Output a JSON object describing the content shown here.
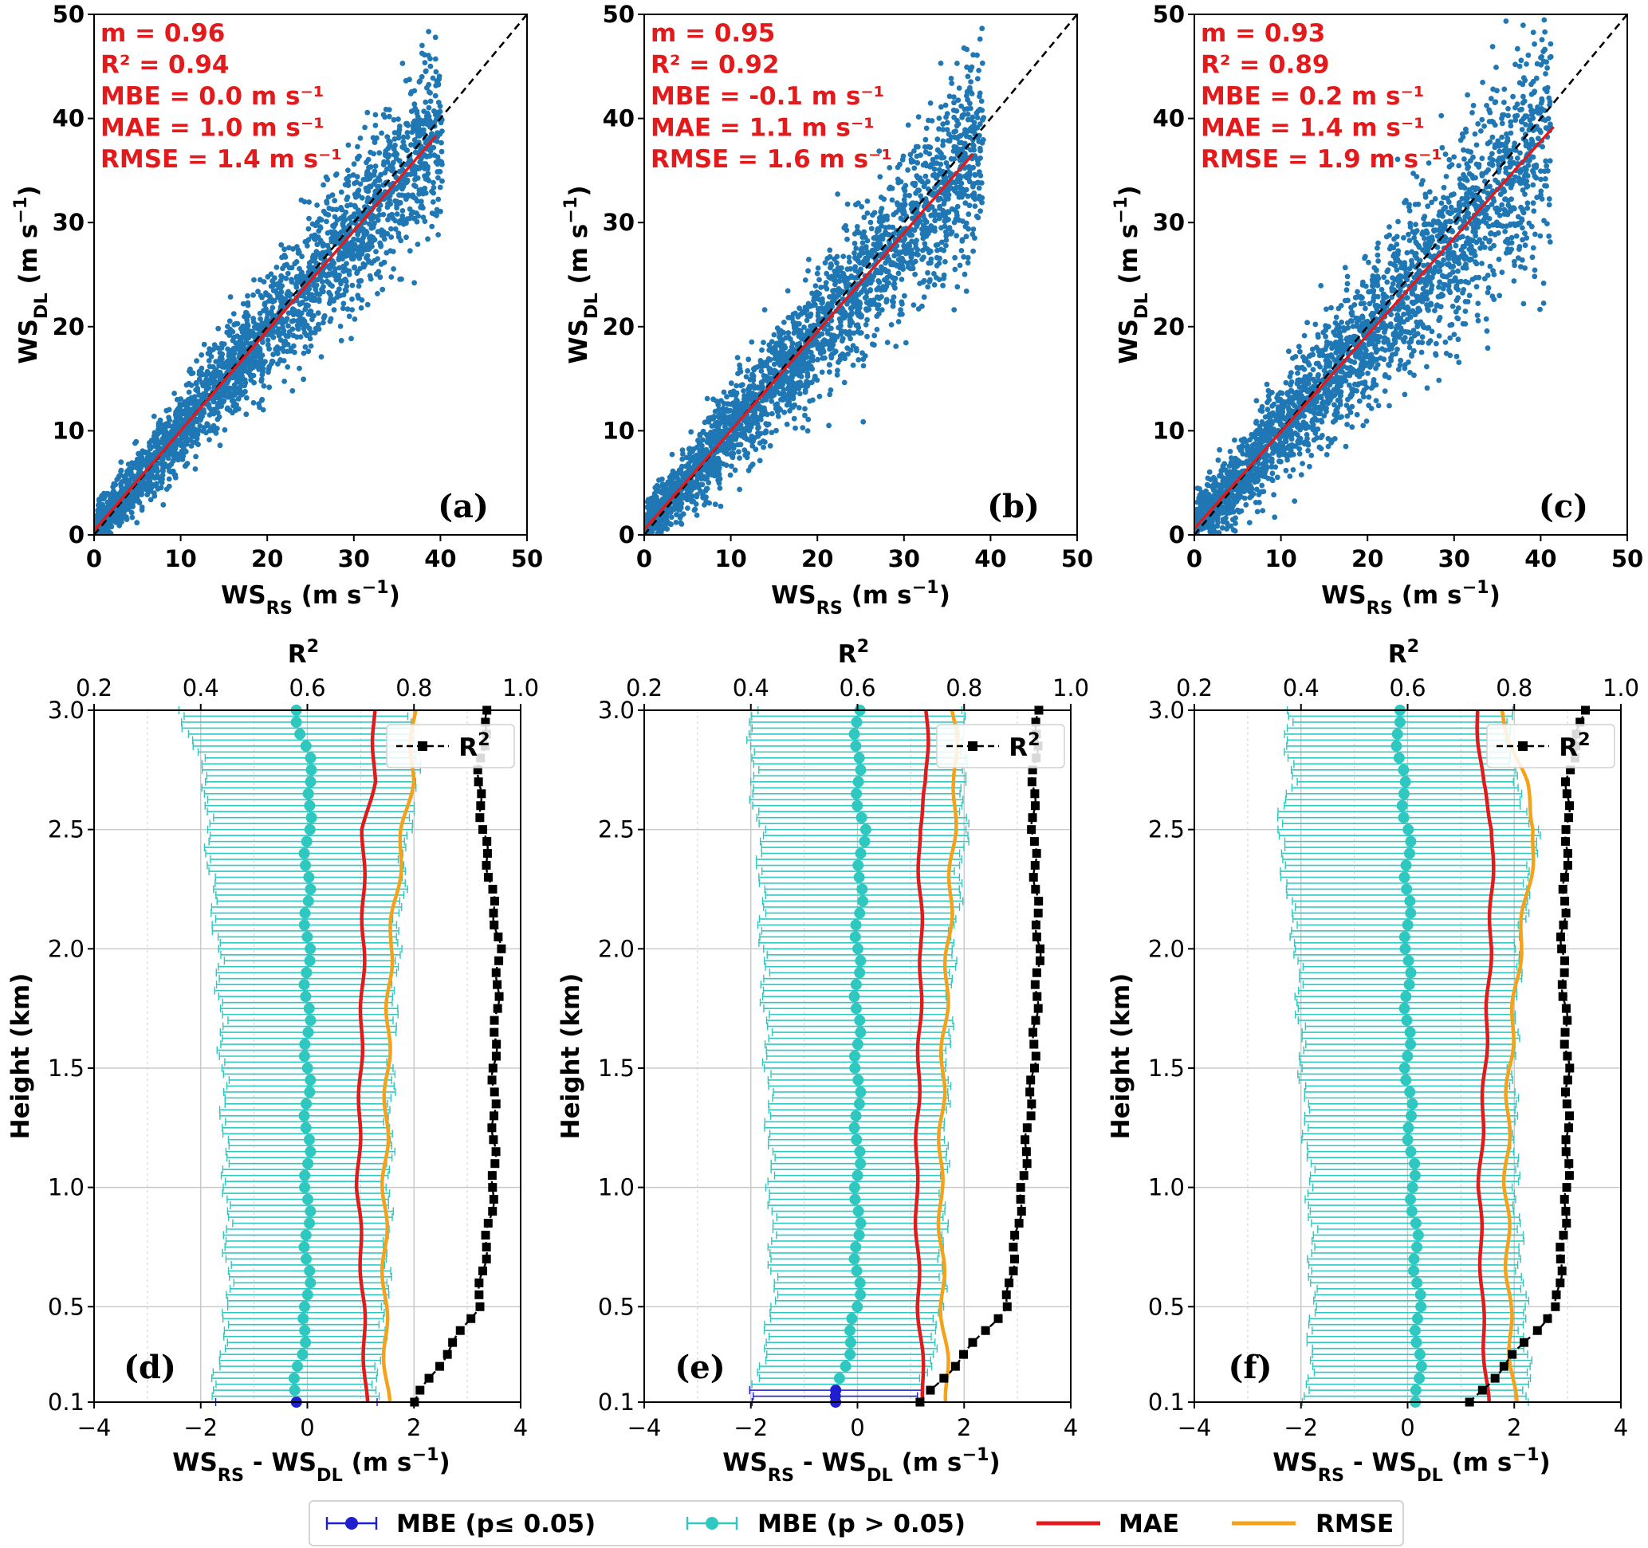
{
  "colors": {
    "scatter": "#1f77b4",
    "fit": "#e31a1c",
    "stats_text": "#e31a1c",
    "mbe_sig": "#1f1fd0",
    "mbe_nonsig": "#2ec8c0",
    "mae": "#e31a1c",
    "rmse": "#f5a21a",
    "r2": "#000000"
  },
  "chart_data": [
    {
      "id": "a",
      "type": "scatter",
      "panel_label": "(a)",
      "xlabel_main": "WS",
      "xlabel_sub": "RS",
      "xlabel_units": " (m s",
      "xlabel_exp": "−1",
      "xlabel_close": ")",
      "ylabel_main": "WS",
      "ylabel_sub": "DL",
      "ylabel_units": " (m s",
      "ylabel_exp": "−1",
      "ylabel_close": ")",
      "xlim": [
        0,
        50
      ],
      "ylim": [
        0,
        50
      ],
      "xticks": [
        "0",
        "10",
        "20",
        "30",
        "40",
        "50"
      ],
      "yticks": [
        "0",
        "10",
        "20",
        "30",
        "40",
        "50"
      ],
      "stats": [
        "m = 0.96",
        "R² = 0.94",
        "MBE = 0.0 m s⁻¹",
        "MAE = 1.0 m s⁻¹",
        "RMSE = 1.4 m s⁻¹"
      ],
      "slope": 0.96,
      "intercept": 0.4,
      "fit_xmax": 39.5,
      "x_max_cloud": 40,
      "spread": 1.8
    },
    {
      "id": "b",
      "type": "scatter",
      "panel_label": "(b)",
      "xlabel_main": "WS",
      "xlabel_sub": "RS",
      "xlabel_units": " (m s",
      "xlabel_exp": "−1",
      "xlabel_close": ")",
      "ylabel_main": "WS",
      "ylabel_sub": "DL",
      "ylabel_units": " (m s",
      "ylabel_exp": "−1",
      "ylabel_close": ")",
      "xlim": [
        0,
        50
      ],
      "ylim": [
        0,
        50
      ],
      "xticks": [
        "0",
        "10",
        "20",
        "30",
        "40",
        "50"
      ],
      "yticks": [
        "0",
        "10",
        "20",
        "30",
        "40",
        "50"
      ],
      "stats": [
        "m = 0.95",
        "R² = 0.92",
        "MBE = -0.1 m s⁻¹",
        "MAE = 1.1 m s⁻¹",
        "RMSE = 1.6 m s⁻¹"
      ],
      "slope": 0.95,
      "intercept": 0.5,
      "fit_xmax": 38,
      "x_max_cloud": 39,
      "spread": 2.0
    },
    {
      "id": "c",
      "type": "scatter",
      "panel_label": "(c)",
      "xlabel_main": "WS",
      "xlabel_sub": "RS",
      "xlabel_units": " (m s",
      "xlabel_exp": "−1",
      "xlabel_close": ")",
      "ylabel_main": "WS",
      "ylabel_sub": "DL",
      "ylabel_units": " (m s",
      "ylabel_exp": "−1",
      "ylabel_close": ")",
      "xlim": [
        0,
        50
      ],
      "ylim": [
        0,
        50
      ],
      "xticks": [
        "0",
        "10",
        "20",
        "30",
        "40",
        "50"
      ],
      "yticks": [
        "0",
        "10",
        "20",
        "30",
        "40",
        "50"
      ],
      "stats": [
        "m = 0.93",
        "R² = 0.89",
        "MBE = 0.2 m s⁻¹",
        "MAE = 1.4 m s⁻¹",
        "RMSE = 1.9 m s⁻¹"
      ],
      "slope": 0.93,
      "intercept": 0.6,
      "fit_xmax": 41.5,
      "x_max_cloud": 41,
      "spread": 2.4
    },
    {
      "id": "d",
      "type": "line",
      "panel_label": "(d)",
      "xlabel_parts": [
        "WS",
        "RS",
        " - WS",
        "DL",
        " (m s",
        "−1",
        ")"
      ],
      "ylabel": "Height (km)",
      "top_label": "R",
      "top_label_exp": "2",
      "xlim": [
        -4,
        4
      ],
      "ylim": [
        0.1,
        3.0
      ],
      "top_xlim": [
        0.2,
        1.0
      ],
      "xticks": [
        "−4",
        "−2",
        "0",
        "2",
        "4"
      ],
      "yticks": [
        "0.1",
        "0.5",
        "1.0",
        "1.5",
        "2.0",
        "2.5",
        "3.0"
      ],
      "top_xticks": [
        "0.2",
        "0.4",
        "0.6",
        "0.8",
        "1.0"
      ],
      "legend_label": "R",
      "legend_exp": "2",
      "heights": [
        0.1,
        0.5,
        1.0,
        1.5,
        2.0,
        2.5,
        2.7,
        3.0
      ],
      "mbe": [
        -0.25,
        0.0,
        0.0,
        0.0,
        0.0,
        0.0,
        0.1,
        -0.2
      ],
      "mbe_err": [
        1.45,
        1.4,
        1.45,
        1.5,
        1.6,
        1.8,
        1.9,
        2.1
      ],
      "mae": [
        1.1,
        1.05,
        0.95,
        1.0,
        1.05,
        1.05,
        1.25,
        1.25
      ],
      "rmse": [
        1.5,
        1.45,
        1.45,
        1.5,
        1.55,
        1.8,
        1.95,
        2.0
      ],
      "r2": [
        0.8,
        0.92,
        0.95,
        0.95,
        0.96,
        0.93,
        0.92,
        0.94
      ],
      "sig_levels": 1
    },
    {
      "id": "e",
      "type": "line",
      "panel_label": "(e)",
      "xlabel_parts": [
        "WS",
        "RS",
        " - WS",
        "DL",
        " (m s",
        "−1",
        ")"
      ],
      "ylabel": "Height (km)",
      "top_label": "R",
      "top_label_exp": "2",
      "xlim": [
        -4,
        4
      ],
      "ylim": [
        0.1,
        3.0
      ],
      "top_xlim": [
        0.2,
        1.0
      ],
      "xticks": [
        "−4",
        "−2",
        "0",
        "2",
        "4"
      ],
      "yticks": [
        "0.1",
        "0.5",
        "1.0",
        "1.5",
        "2.0",
        "2.5",
        "3.0"
      ],
      "top_xticks": [
        "0.2",
        "0.4",
        "0.6",
        "0.8",
        "1.0"
      ],
      "legend_label": "R",
      "legend_exp": "2",
      "heights": [
        0.1,
        0.5,
        1.0,
        1.5,
        2.0,
        2.5,
        2.7,
        3.0
      ],
      "mbe": [
        -0.4,
        0.0,
        0.0,
        0.0,
        0.0,
        0.1,
        0.0,
        0.0
      ],
      "mbe_err": [
        1.5,
        1.5,
        1.55,
        1.6,
        1.7,
        1.85,
        1.9,
        1.9
      ],
      "mae": [
        1.25,
        1.15,
        1.1,
        1.15,
        1.2,
        1.15,
        1.3,
        1.3
      ],
      "rmse": [
        1.7,
        1.6,
        1.55,
        1.6,
        1.7,
        1.8,
        1.85,
        1.8
      ],
      "r2": [
        0.72,
        0.88,
        0.91,
        0.93,
        0.94,
        0.93,
        0.93,
        0.94
      ],
      "sig_levels": 3
    },
    {
      "id": "f",
      "type": "line",
      "panel_label": "(f)",
      "xlabel_parts": [
        "WS",
        "RS",
        " - WS",
        "DL",
        " (m s",
        "−1",
        ")"
      ],
      "ylabel": "Height (km)",
      "top_label": "R",
      "top_label_exp": "2",
      "xlim": [
        -4,
        4
      ],
      "ylim": [
        0.1,
        3.0
      ],
      "top_xlim": [
        0.2,
        1.0
      ],
      "xticks": [
        "−4",
        "−2",
        "0",
        "2",
        "4"
      ],
      "yticks": [
        "0.1",
        "0.5",
        "1.0",
        "1.5",
        "2.0",
        "2.5",
        "3.0"
      ],
      "top_xticks": [
        "0.2",
        "0.4",
        "0.6",
        "0.8",
        "1.0"
      ],
      "legend_label": "R",
      "legend_exp": "2",
      "heights": [
        0.1,
        0.5,
        1.0,
        1.5,
        2.0,
        2.5,
        2.7,
        3.0
      ],
      "mbe": [
        0.2,
        0.2,
        0.1,
        0.0,
        0.0,
        0.0,
        -0.1,
        -0.2
      ],
      "mbe_err": [
        2.0,
        1.9,
        1.85,
        1.9,
        2.0,
        2.35,
        2.0,
        2.0
      ],
      "mae": [
        1.5,
        1.4,
        1.35,
        1.45,
        1.55,
        1.6,
        1.4,
        1.3
      ],
      "rmse": [
        2.0,
        1.9,
        1.85,
        1.9,
        2.1,
        2.4,
        2.2,
        1.75
      ],
      "r2": [
        0.72,
        0.88,
        0.9,
        0.9,
        0.89,
        0.9,
        0.9,
        0.93
      ],
      "sig_levels": 0
    }
  ],
  "legend": {
    "items": [
      {
        "key": "mbe_sig",
        "label": "MBE (p≤ 0.05)",
        "style": "errorbar"
      },
      {
        "key": "mbe_nonsig",
        "label": "MBE (p > 0.05)",
        "style": "errorbar"
      },
      {
        "key": "mae",
        "label": "MAE",
        "style": "line"
      },
      {
        "key": "rmse",
        "label": "RMSE",
        "style": "line"
      }
    ]
  }
}
